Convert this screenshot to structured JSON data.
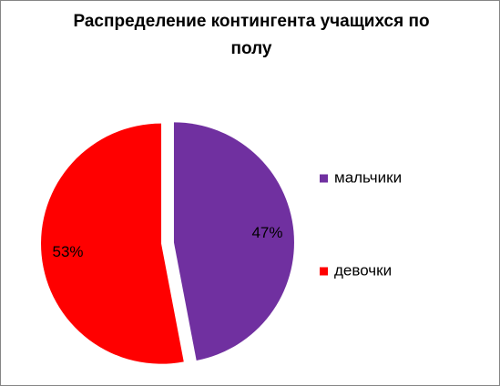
{
  "chart_data": {
    "type": "pie",
    "title": "Распределение контингента учащихся по полу",
    "categories": [
      "мальчики",
      "девочки"
    ],
    "values": [
      47,
      53
    ],
    "value_labels": [
      "47%",
      "53%"
    ],
    "colors": [
      "#7030a0",
      "#ff0000"
    ],
    "legend": "right"
  }
}
